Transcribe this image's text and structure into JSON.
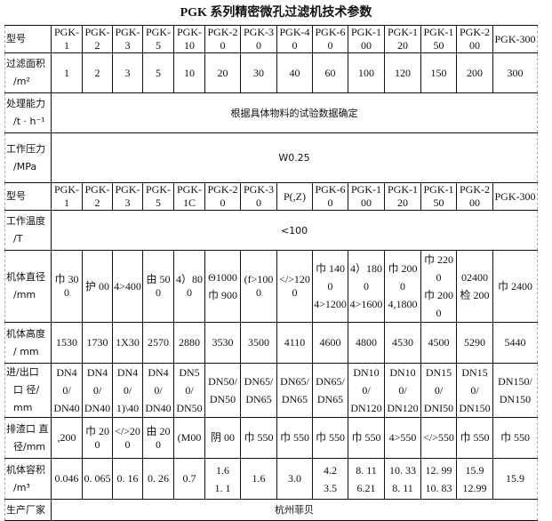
{
  "title": "PGK 系列精密微孔过滤机技术参数",
  "rows": [
    {
      "label": [
        "型号"
      ],
      "cells": [
        "PGK-1",
        "PGK-2",
        "PGK-3",
        "PGK-5",
        "PGK-10",
        "PGK-20",
        "PGK-30",
        "PGK-40",
        "PGK-60",
        "PGK-100",
        "PGK-120",
        "PGK-150",
        "PGK-200",
        "PGK-300"
      ]
    },
    {
      "label": [
        "过滤面积",
        "/m²"
      ],
      "cells": [
        "1",
        "2",
        "3",
        "5",
        "10",
        "20",
        "30",
        "40",
        "60",
        "100",
        "120",
        "150",
        "200",
        "300"
      ]
    },
    {
      "label": [
        "处理能力",
        "/t · h⁻¹"
      ],
      "span": "根据具体物料的试验数据确定"
    },
    {
      "label": [
        "工作压力",
        "/MPa"
      ],
      "span": "W0.25"
    },
    {
      "label": [
        "型号"
      ],
      "cells": [
        "PGK-1",
        "PGK-2",
        "PGK-3",
        "PGK-5",
        "PGK-1C",
        "PGK-20",
        "PGK-30",
        "P(,Z)",
        "PGK-60",
        "PGK-100",
        "PGK-120",
        "PGK-150",
        "PGK-200",
        "PGK-300"
      ]
    },
    {
      "label": [
        "工作温度",
        "/T"
      ],
      "span": "<100"
    },
    {
      "label": [
        "机体直径",
        "/mm"
      ],
      "cells": [
        [
          "巾 300"
        ],
        [
          "护 00"
        ],
        [
          "4>400"
        ],
        [
          "由 500"
        ],
        [
          "4）800"
        ],
        [
          "Θ1000",
          "巾 900"
        ],
        [
          "(f>1000"
        ],
        [
          "</>1200"
        ],
        [
          "巾  1400",
          "4>1200"
        ],
        [
          "4）1800",
          "4>1600"
        ],
        [
          "巾 2000",
          "4,1800"
        ],
        [
          "巾 2200",
          "巾 2000"
        ],
        [
          "02400",
          "检 200"
        ],
        [
          "巾 2400"
        ]
      ]
    },
    {
      "label": [
        "机体高度",
        "/ mm"
      ],
      "cells": [
        "1530",
        "1730",
        "1X30",
        "2570",
        "2880",
        "3530",
        "3500",
        "4110",
        "4600",
        "4800",
        "4530",
        "4500",
        "5290",
        "5440"
      ]
    },
    {
      "label": [
        "进/出口",
        "口 径/ mm"
      ],
      "cells": [
        [
          "DN40/",
          "DN40"
        ],
        [
          "DN40/",
          "DN40"
        ],
        [
          "DN40/",
          "1)\\40"
        ],
        [
          "DN40/",
          "DN40"
        ],
        [
          "DN50/",
          "DN50"
        ],
        [
          "DN50/",
          "DN50"
        ],
        [
          "DN65/",
          "DN65"
        ],
        [
          "DN65/",
          "DN65"
        ],
        [
          "DN65/",
          "DN65"
        ],
        [
          "DN100/",
          "DN120"
        ],
        [
          "DN100/",
          "DN120"
        ],
        [
          "DN150/",
          "DNI50"
        ],
        [
          "DN150/",
          "DN150"
        ],
        [
          "DN150/",
          "DN150"
        ]
      ]
    },
    {
      "label": [
        "排渣口 直",
        "径/mm"
      ],
      "cells": [
        ",200",
        "巾 200",
        "</>200",
        "由 200",
        "(M00",
        "阴 00",
        "巾 550",
        "巾 550",
        "巾 550",
        "巾 550",
        "4>550",
        "</>550",
        "巾 550",
        "巾 550"
      ]
    },
    {
      "label": [
        "机体容积",
        "/m³"
      ],
      "cells": [
        [
          "0.046"
        ],
        [
          "0. 065"
        ],
        [
          "0. 16"
        ],
        [
          "0. 26"
        ],
        [
          "0.7"
        ],
        [
          "1.6",
          "1. 1"
        ],
        [
          "1.6"
        ],
        [
          "3.0"
        ],
        [
          "4.2",
          "3.5"
        ],
        [
          "8. 11",
          "6.21"
        ],
        [
          "10. 33",
          "8. 11"
        ],
        [
          "12. 99",
          "10. 83"
        ],
        [
          "15.9",
          "12.99"
        ],
        [
          "15.9"
        ]
      ]
    },
    {
      "label": [
        "生产厂家"
      ],
      "span": "杭州菲贝"
    }
  ]
}
